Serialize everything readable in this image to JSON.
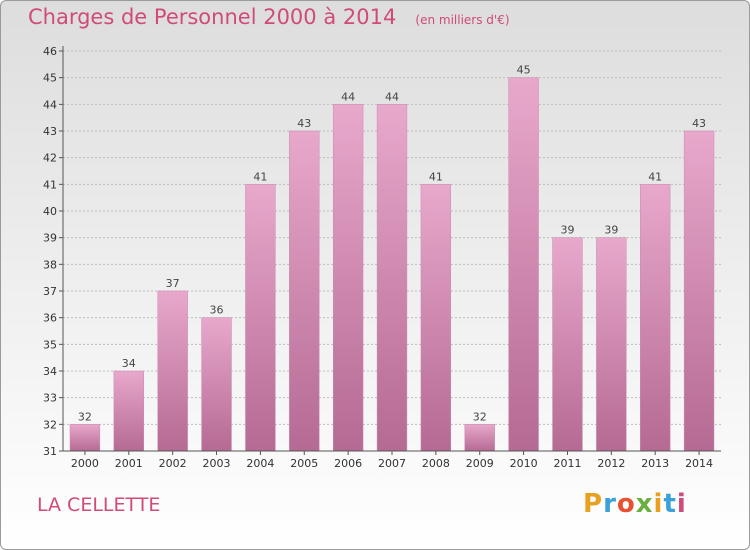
{
  "header": {
    "title": "Charges de Personnel 2000 à 2014",
    "subtitle": "(en milliers d'€)"
  },
  "footer": {
    "commune": "LA CELLETTE",
    "logo_letters": [
      "P",
      "r",
      "o",
      "x",
      "i",
      "t",
      "i"
    ],
    "logo_colors": [
      "#e8a020",
      "#3aa0d8",
      "#e85030",
      "#6ab040",
      "#e8a020",
      "#3aa0d8",
      "#d04a7a"
    ]
  },
  "colors": {
    "bar_top": "#e8a8cc",
    "bar_bottom": "#b56a93",
    "grid": "#bdbdbd",
    "axis": "#555555"
  },
  "chart_data": {
    "type": "bar",
    "title": "Charges de Personnel 2000 à 2014",
    "subtitle": "(en milliers d'€)",
    "categories": [
      "2000",
      "2001",
      "2002",
      "2003",
      "2004",
      "2005",
      "2006",
      "2007",
      "2008",
      "2009",
      "2010",
      "2011",
      "2012",
      "2013",
      "2014"
    ],
    "values": [
      32,
      34,
      37,
      36,
      41,
      43,
      44,
      44,
      41,
      32,
      45,
      39,
      39,
      41,
      43
    ],
    "ylim": [
      31,
      46
    ],
    "yticks": [
      31,
      32,
      33,
      34,
      35,
      36,
      37,
      38,
      39,
      40,
      41,
      42,
      43,
      44,
      45,
      46
    ],
    "grid": true
  }
}
